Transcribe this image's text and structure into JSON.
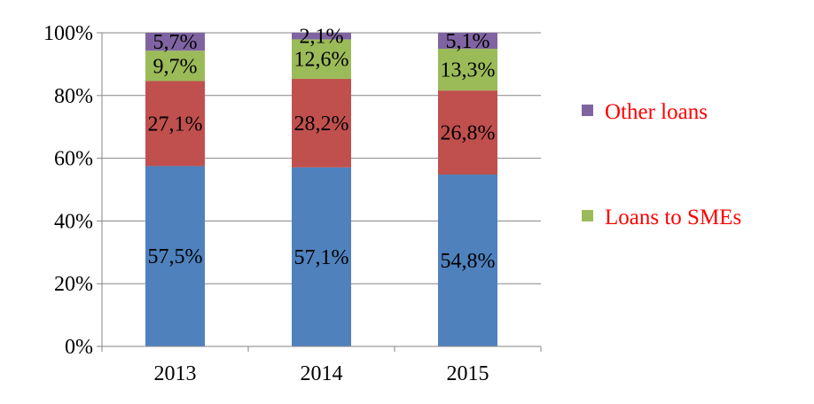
{
  "chart_data": {
    "type": "bar",
    "stacked": true,
    "categories": [
      "2013",
      "2014",
      "2015"
    ],
    "series": [
      {
        "name": "",
        "color": "#4f81bd",
        "values": [
          57.5,
          57.1,
          54.8
        ],
        "labels": [
          "57,5%",
          "57,1%",
          "54,8%"
        ]
      },
      {
        "name": "",
        "color": "#c0504d",
        "values": [
          27.1,
          28.2,
          26.8
        ],
        "labels": [
          "27,1%",
          "28,2%",
          "26,8%"
        ]
      },
      {
        "name": "Loans to SMEs",
        "color": "#9bbb59",
        "values": [
          9.7,
          12.6,
          13.3
        ],
        "labels": [
          "9,7%",
          "12,6%",
          "13,3%"
        ]
      },
      {
        "name": "Other loans",
        "color": "#8064a2",
        "values": [
          5.7,
          2.1,
          5.1
        ],
        "labels": [
          "5,7%",
          "2,1%",
          "5,1%"
        ]
      }
    ],
    "y_ticks": [
      "0%",
      "20%",
      "40%",
      "60%",
      "80%",
      "100%"
    ],
    "ylim": [
      0,
      100
    ],
    "grid": true,
    "legend_position": "right",
    "legend_text_color": "#ff0000",
    "title": "",
    "xlabel": "",
    "ylabel": ""
  }
}
